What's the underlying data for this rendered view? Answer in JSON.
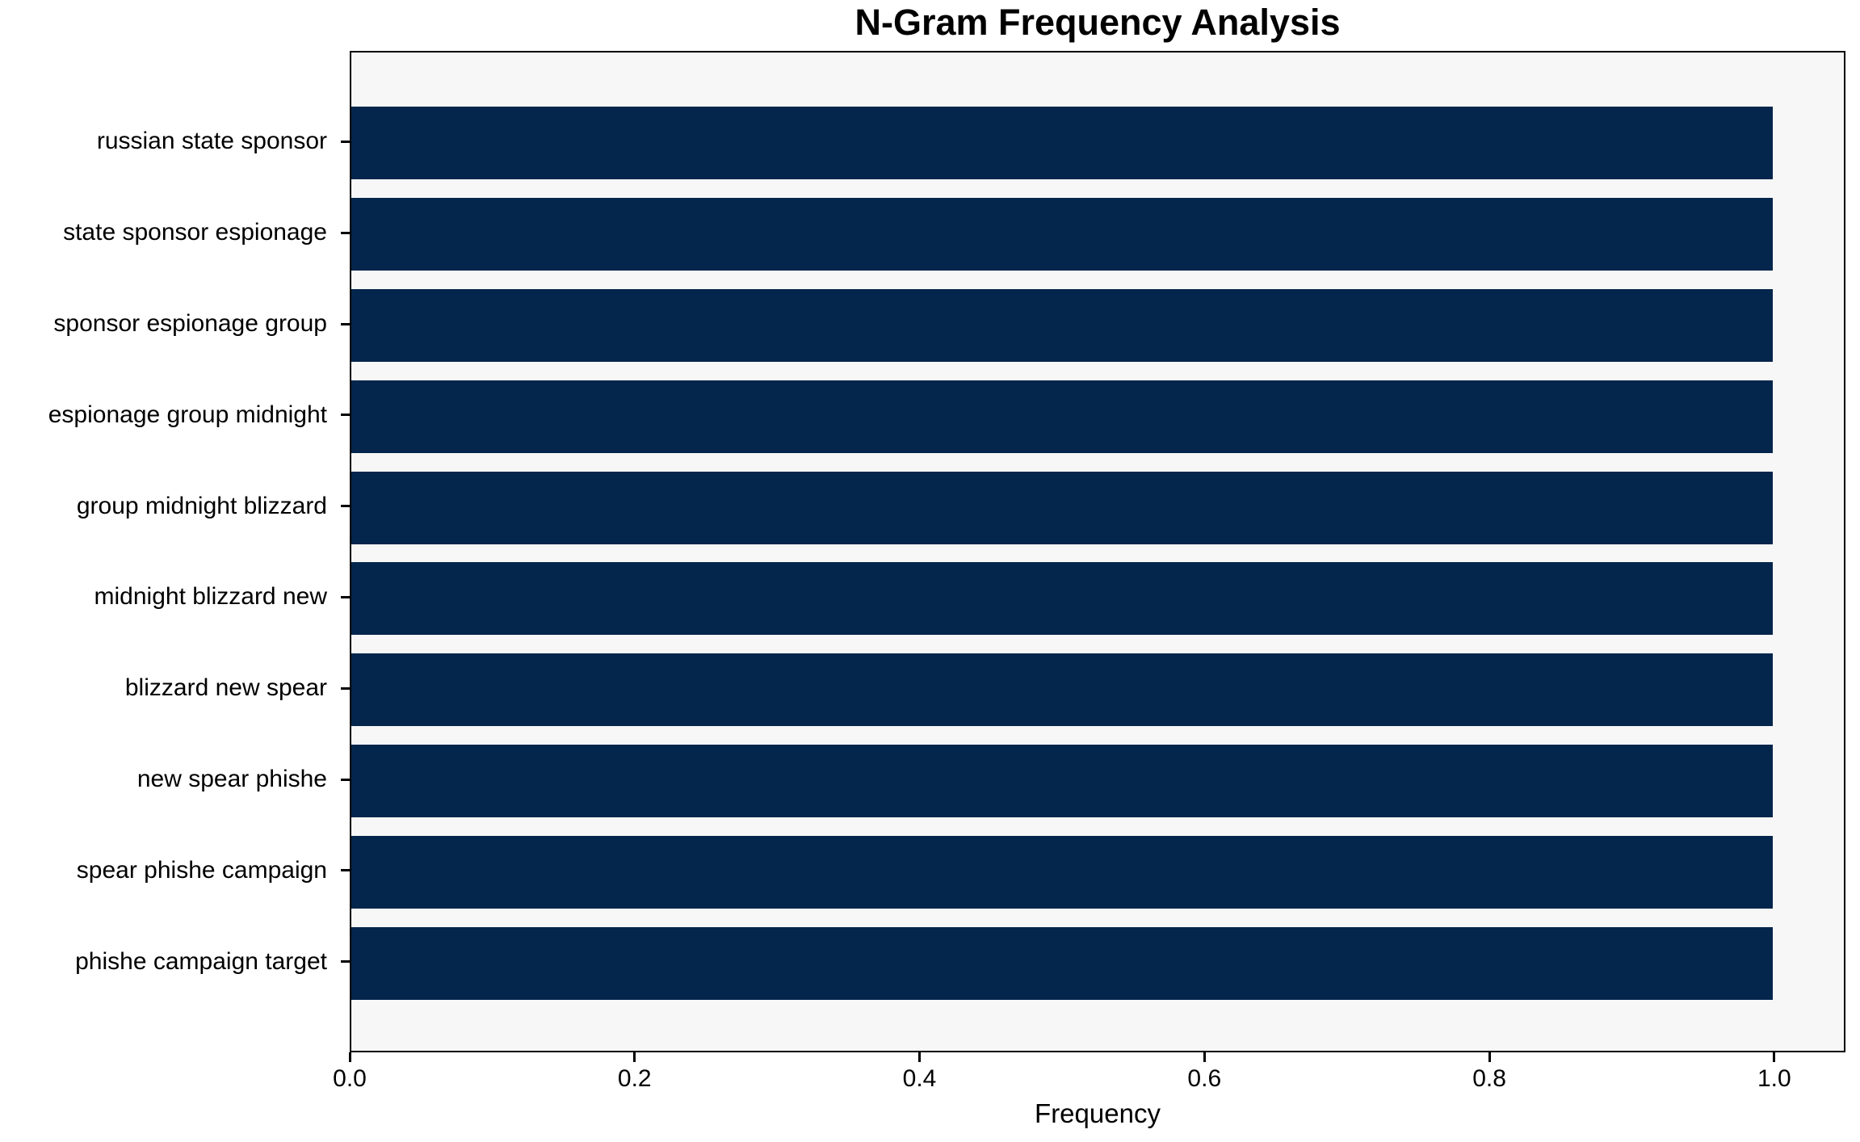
{
  "chart_data": {
    "type": "bar",
    "orientation": "horizontal",
    "title": "N-Gram Frequency Analysis",
    "xlabel": "Frequency",
    "ylabel": "",
    "categories": [
      "russian state sponsor",
      "state sponsor espionage",
      "sponsor espionage group",
      "espionage group midnight",
      "group midnight blizzard",
      "midnight blizzard new",
      "blizzard new spear",
      "new spear phishe",
      "spear phishe campaign",
      "phishe campaign target"
    ],
    "values": [
      1.0,
      1.0,
      1.0,
      1.0,
      1.0,
      1.0,
      1.0,
      1.0,
      1.0,
      1.0
    ],
    "xticks": [
      0.0,
      0.2,
      0.4,
      0.6,
      0.8,
      1.0
    ],
    "xtick_labels": [
      "0.0",
      "0.2",
      "0.4",
      "0.6",
      "0.8",
      "1.0"
    ],
    "xlim": [
      0,
      1.05
    ],
    "grid": false,
    "legend": false,
    "colors": {
      "bar": "#04254C",
      "plot_background": "#f7f7f7",
      "figure_background": "#ffffff",
      "spine": "#000000",
      "text": "#000000"
    }
  }
}
